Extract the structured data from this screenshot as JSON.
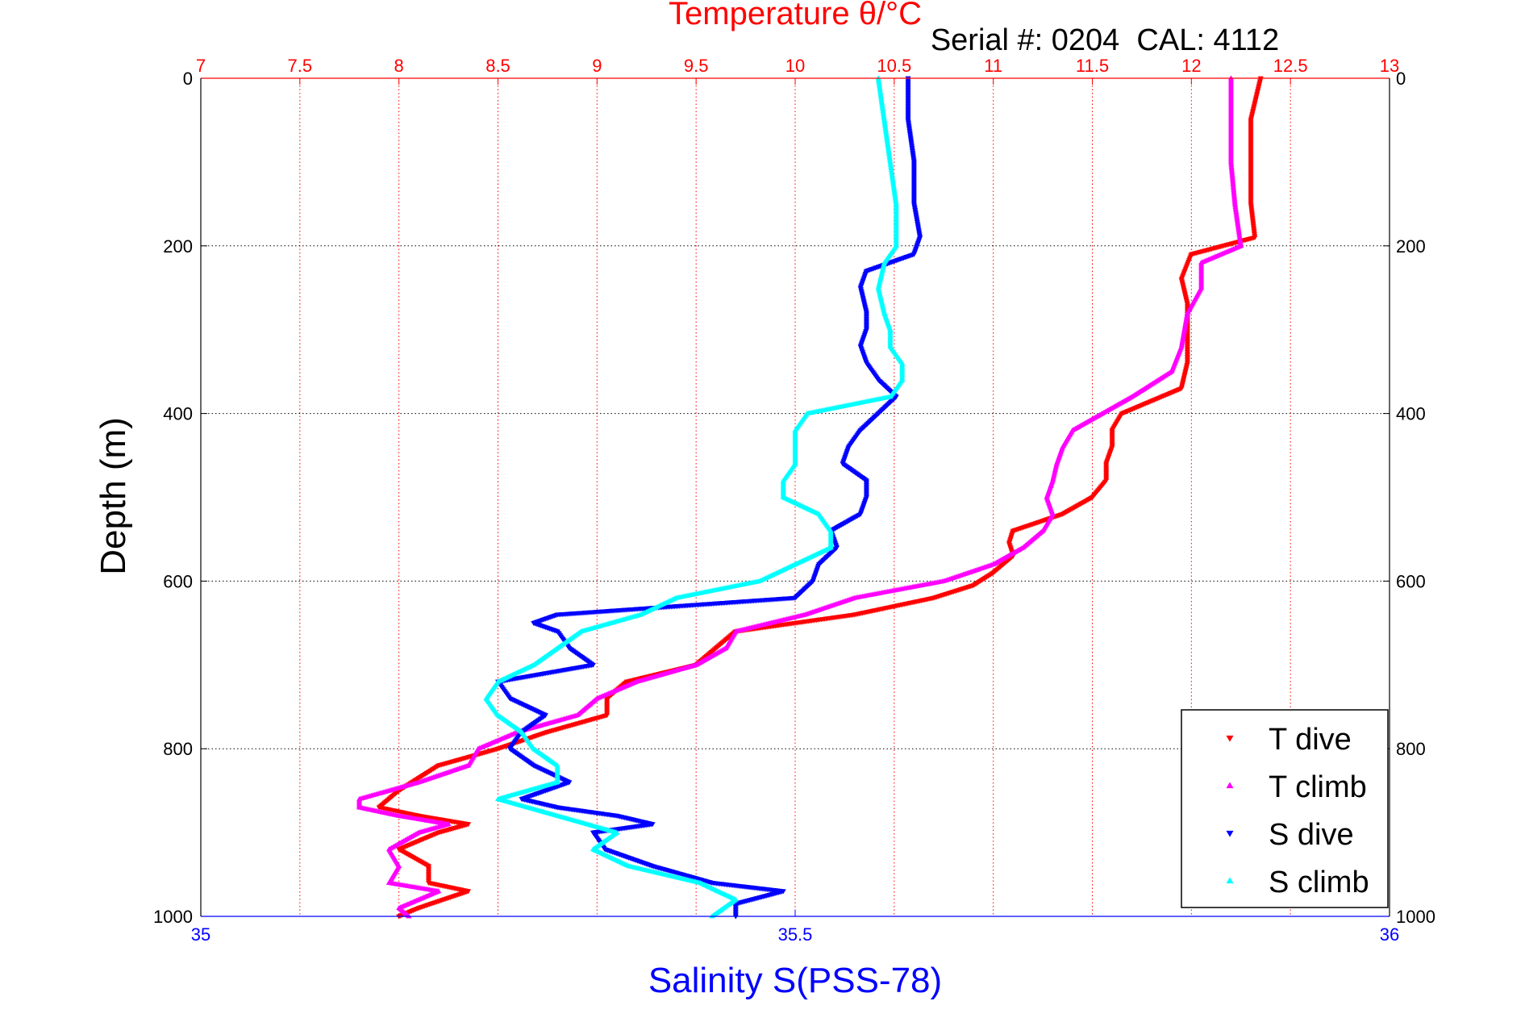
{
  "chart_data": {
    "type": "scatter",
    "title": "Temperature θ/°C",
    "subtitle": "Serial #: 0204  CAL: 4112",
    "ylabel": "Depth (m)",
    "xlabel": "Salinity S(PSS-78)",
    "temperature_axis": {
      "range": [
        7,
        13
      ],
      "ticks": [
        7,
        7.5,
        8,
        8.5,
        9,
        9.5,
        10,
        10.5,
        11,
        11.5,
        12,
        12.5,
        13
      ],
      "tick_labels": [
        "7",
        "7.5",
        "8",
        "8.5",
        "9",
        "9.5",
        "10",
        "10.5",
        "11",
        "11.5",
        "12",
        "12.5",
        "13"
      ]
    },
    "salinity_axis": {
      "range": [
        35,
        36
      ],
      "ticks": [
        35,
        35.5,
        36
      ],
      "tick_labels": [
        "35",
        "35.5",
        "36"
      ]
    },
    "depth_axis": {
      "range": [
        0,
        1000
      ],
      "reversed": true,
      "ticks": [
        0,
        200,
        400,
        600,
        800,
        1000
      ],
      "tick_labels": [
        "0",
        "200",
        "400",
        "600",
        "800",
        "1000"
      ]
    },
    "grid": true,
    "legend_position": "bottom-right",
    "series": [
      {
        "name": "T dive",
        "axis": "temperature",
        "marker": "down-triangle",
        "color": "#ff0000",
        "points": [
          [
            0,
            12.35
          ],
          [
            50,
            12.3
          ],
          [
            100,
            12.3
          ],
          [
            150,
            12.3
          ],
          [
            190,
            12.32
          ],
          [
            210,
            12.0
          ],
          [
            240,
            11.95
          ],
          [
            270,
            11.98
          ],
          [
            300,
            11.98
          ],
          [
            340,
            11.98
          ],
          [
            370,
            11.95
          ],
          [
            380,
            11.85
          ],
          [
            400,
            11.65
          ],
          [
            420,
            11.6
          ],
          [
            440,
            11.6
          ],
          [
            460,
            11.57
          ],
          [
            480,
            11.57
          ],
          [
            500,
            11.5
          ],
          [
            520,
            11.35
          ],
          [
            540,
            11.1
          ],
          [
            555,
            11.08
          ],
          [
            570,
            11.1
          ],
          [
            590,
            11.0
          ],
          [
            605,
            10.9
          ],
          [
            620,
            10.7
          ],
          [
            640,
            10.3
          ],
          [
            660,
            9.7
          ],
          [
            680,
            9.6
          ],
          [
            700,
            9.5
          ],
          [
            720,
            9.15
          ],
          [
            740,
            9.05
          ],
          [
            760,
            9.05
          ],
          [
            780,
            8.75
          ],
          [
            800,
            8.5
          ],
          [
            820,
            8.2
          ],
          [
            850,
            8.0
          ],
          [
            870,
            7.9
          ],
          [
            880,
            8.1
          ],
          [
            890,
            8.35
          ],
          [
            900,
            8.2
          ],
          [
            920,
            8.0
          ],
          [
            940,
            8.15
          ],
          [
            960,
            8.15
          ],
          [
            970,
            8.35
          ],
          [
            990,
            8.1
          ],
          [
            1000,
            8.0
          ]
        ]
      },
      {
        "name": "T climb",
        "axis": "temperature",
        "marker": "up-triangle",
        "color": "#ff00ff",
        "points": [
          [
            0,
            12.2
          ],
          [
            50,
            12.2
          ],
          [
            100,
            12.2
          ],
          [
            150,
            12.22
          ],
          [
            200,
            12.25
          ],
          [
            220,
            12.05
          ],
          [
            250,
            12.05
          ],
          [
            280,
            11.98
          ],
          [
            320,
            11.95
          ],
          [
            350,
            11.9
          ],
          [
            380,
            11.7
          ],
          [
            400,
            11.55
          ],
          [
            420,
            11.4
          ],
          [
            440,
            11.35
          ],
          [
            460,
            11.32
          ],
          [
            480,
            11.3
          ],
          [
            500,
            11.27
          ],
          [
            520,
            11.3
          ],
          [
            540,
            11.25
          ],
          [
            560,
            11.15
          ],
          [
            580,
            11.0
          ],
          [
            600,
            10.75
          ],
          [
            620,
            10.3
          ],
          [
            640,
            10.05
          ],
          [
            660,
            9.7
          ],
          [
            680,
            9.65
          ],
          [
            700,
            9.5
          ],
          [
            720,
            9.2
          ],
          [
            740,
            9.0
          ],
          [
            760,
            8.9
          ],
          [
            780,
            8.6
          ],
          [
            800,
            8.4
          ],
          [
            820,
            8.35
          ],
          [
            840,
            8.1
          ],
          [
            860,
            7.8
          ],
          [
            870,
            7.8
          ],
          [
            880,
            8.0
          ],
          [
            890,
            8.25
          ],
          [
            900,
            8.1
          ],
          [
            920,
            7.95
          ],
          [
            940,
            8.0
          ],
          [
            960,
            7.95
          ],
          [
            970,
            8.2
          ],
          [
            990,
            8.0
          ],
          [
            1000,
            8.05
          ]
        ]
      },
      {
        "name": "S dive",
        "axis": "salinity",
        "marker": "down-triangle",
        "color": "#0000ff",
        "points": [
          [
            0,
            35.595
          ],
          [
            50,
            35.595
          ],
          [
            100,
            35.6
          ],
          [
            150,
            35.6
          ],
          [
            190,
            35.605
          ],
          [
            210,
            35.6
          ],
          [
            230,
            35.56
          ],
          [
            250,
            35.555
          ],
          [
            280,
            35.56
          ],
          [
            300,
            35.56
          ],
          [
            320,
            35.555
          ],
          [
            340,
            35.56
          ],
          [
            360,
            35.57
          ],
          [
            380,
            35.585
          ],
          [
            400,
            35.57
          ],
          [
            420,
            35.555
          ],
          [
            440,
            35.545
          ],
          [
            460,
            35.54
          ],
          [
            480,
            35.56
          ],
          [
            500,
            35.56
          ],
          [
            520,
            35.555
          ],
          [
            540,
            35.53
          ],
          [
            560,
            35.535
          ],
          [
            580,
            35.52
          ],
          [
            600,
            35.515
          ],
          [
            620,
            35.5
          ],
          [
            640,
            35.3
          ],
          [
            650,
            35.28
          ],
          [
            660,
            35.3
          ],
          [
            680,
            35.31
          ],
          [
            700,
            35.33
          ],
          [
            720,
            35.25
          ],
          [
            740,
            35.26
          ],
          [
            760,
            35.29
          ],
          [
            780,
            35.27
          ],
          [
            800,
            35.26
          ],
          [
            820,
            35.28
          ],
          [
            840,
            35.31
          ],
          [
            860,
            35.27
          ],
          [
            870,
            35.3
          ],
          [
            880,
            35.35
          ],
          [
            890,
            35.38
          ],
          [
            900,
            35.33
          ],
          [
            920,
            35.34
          ],
          [
            940,
            35.38
          ],
          [
            960,
            35.43
          ],
          [
            970,
            35.49
          ],
          [
            985,
            35.45
          ],
          [
            1000,
            35.45
          ]
        ]
      },
      {
        "name": "S climb",
        "axis": "salinity",
        "marker": "up-triangle",
        "color": "#00ffff",
        "points": [
          [
            0,
            35.57
          ],
          [
            50,
            35.575
          ],
          [
            100,
            35.58
          ],
          [
            150,
            35.585
          ],
          [
            200,
            35.585
          ],
          [
            220,
            35.575
          ],
          [
            250,
            35.57
          ],
          [
            280,
            35.575
          ],
          [
            300,
            35.58
          ],
          [
            320,
            35.58
          ],
          [
            340,
            35.59
          ],
          [
            360,
            35.59
          ],
          [
            380,
            35.58
          ],
          [
            400,
            35.51
          ],
          [
            420,
            35.5
          ],
          [
            440,
            35.5
          ],
          [
            460,
            35.5
          ],
          [
            480,
            35.49
          ],
          [
            500,
            35.49
          ],
          [
            520,
            35.52
          ],
          [
            540,
            35.53
          ],
          [
            560,
            35.53
          ],
          [
            580,
            35.5
          ],
          [
            600,
            35.47
          ],
          [
            620,
            35.4
          ],
          [
            640,
            35.37
          ],
          [
            660,
            35.32
          ],
          [
            680,
            35.3
          ],
          [
            700,
            35.28
          ],
          [
            720,
            35.25
          ],
          [
            740,
            35.24
          ],
          [
            760,
            35.25
          ],
          [
            780,
            35.27
          ],
          [
            800,
            35.28
          ],
          [
            820,
            35.3
          ],
          [
            840,
            35.3
          ],
          [
            860,
            35.25
          ],
          [
            880,
            35.3
          ],
          [
            900,
            35.35
          ],
          [
            920,
            35.33
          ],
          [
            940,
            35.36
          ],
          [
            960,
            35.42
          ],
          [
            980,
            35.45
          ],
          [
            1000,
            35.43
          ]
        ]
      }
    ]
  }
}
